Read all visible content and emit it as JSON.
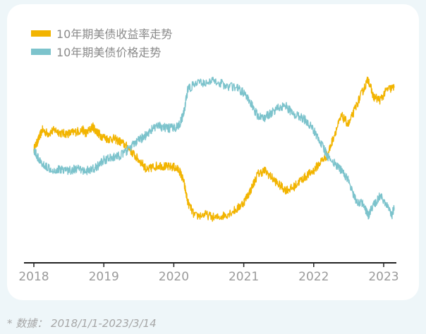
{
  "chart_data": {
    "type": "line",
    "title": "",
    "xlabel": "",
    "ylabel": "",
    "x_ticks": [
      "2018",
      "2019",
      "2020",
      "2021",
      "2022",
      "2023"
    ],
    "x_range": [
      2018.0,
      2023.2
    ],
    "y_axis_visible": false,
    "grid": false,
    "legend_position": "top-left",
    "series": [
      {
        "name": "10年期美债收益率走势",
        "color": "#f2b400",
        "points": [
          [
            2018.0,
            0.52
          ],
          [
            2018.06,
            0.57
          ],
          [
            2018.12,
            0.63
          ],
          [
            2018.2,
            0.61
          ],
          [
            2018.3,
            0.63
          ],
          [
            2018.4,
            0.61
          ],
          [
            2018.5,
            0.61
          ],
          [
            2018.6,
            0.62
          ],
          [
            2018.7,
            0.63
          ],
          [
            2018.75,
            0.61
          ],
          [
            2018.84,
            0.65
          ],
          [
            2018.9,
            0.62
          ],
          [
            2018.95,
            0.6
          ],
          [
            2019.05,
            0.58
          ],
          [
            2019.15,
            0.58
          ],
          [
            2019.25,
            0.56
          ],
          [
            2019.35,
            0.53
          ],
          [
            2019.45,
            0.48
          ],
          [
            2019.55,
            0.44
          ],
          [
            2019.62,
            0.4
          ],
          [
            2019.7,
            0.42
          ],
          [
            2019.8,
            0.43
          ],
          [
            2019.9,
            0.42
          ],
          [
            2020.0,
            0.42
          ],
          [
            2020.08,
            0.4
          ],
          [
            2020.14,
            0.34
          ],
          [
            2020.2,
            0.22
          ],
          [
            2020.3,
            0.14
          ],
          [
            2020.45,
            0.15
          ],
          [
            2020.6,
            0.13
          ],
          [
            2020.75,
            0.15
          ],
          [
            2020.9,
            0.18
          ],
          [
            2021.0,
            0.22
          ],
          [
            2021.1,
            0.29
          ],
          [
            2021.2,
            0.38
          ],
          [
            2021.3,
            0.4
          ],
          [
            2021.4,
            0.36
          ],
          [
            2021.5,
            0.32
          ],
          [
            2021.6,
            0.29
          ],
          [
            2021.7,
            0.3
          ],
          [
            2021.8,
            0.34
          ],
          [
            2021.9,
            0.37
          ],
          [
            2022.0,
            0.4
          ],
          [
            2022.1,
            0.45
          ],
          [
            2022.2,
            0.49
          ],
          [
            2022.3,
            0.61
          ],
          [
            2022.4,
            0.71
          ],
          [
            2022.5,
            0.66
          ],
          [
            2022.6,
            0.76
          ],
          [
            2022.7,
            0.85
          ],
          [
            2022.78,
            0.92
          ],
          [
            2022.85,
            0.82
          ],
          [
            2022.95,
            0.8
          ],
          [
            2023.05,
            0.86
          ],
          [
            2023.15,
            0.87
          ]
        ]
      },
      {
        "name": "10年期美债价格走势",
        "color": "#7cc3cc",
        "points": [
          [
            2018.0,
            0.52
          ],
          [
            2018.06,
            0.47
          ],
          [
            2018.12,
            0.43
          ],
          [
            2018.2,
            0.42
          ],
          [
            2018.3,
            0.4
          ],
          [
            2018.4,
            0.41
          ],
          [
            2018.5,
            0.4
          ],
          [
            2018.6,
            0.41
          ],
          [
            2018.7,
            0.4
          ],
          [
            2018.8,
            0.4
          ],
          [
            2018.9,
            0.42
          ],
          [
            2019.0,
            0.46
          ],
          [
            2019.1,
            0.47
          ],
          [
            2019.2,
            0.48
          ],
          [
            2019.3,
            0.5
          ],
          [
            2019.4,
            0.54
          ],
          [
            2019.5,
            0.57
          ],
          [
            2019.6,
            0.6
          ],
          [
            2019.7,
            0.64
          ],
          [
            2019.8,
            0.65
          ],
          [
            2019.9,
            0.64
          ],
          [
            2020.0,
            0.64
          ],
          [
            2020.08,
            0.66
          ],
          [
            2020.14,
            0.72
          ],
          [
            2020.2,
            0.86
          ],
          [
            2020.3,
            0.89
          ],
          [
            2020.45,
            0.9
          ],
          [
            2020.6,
            0.91
          ],
          [
            2020.75,
            0.88
          ],
          [
            2020.9,
            0.87
          ],
          [
            2021.0,
            0.84
          ],
          [
            2021.1,
            0.78
          ],
          [
            2021.2,
            0.71
          ],
          [
            2021.3,
            0.7
          ],
          [
            2021.4,
            0.73
          ],
          [
            2021.5,
            0.76
          ],
          [
            2021.6,
            0.77
          ],
          [
            2021.7,
            0.72
          ],
          [
            2021.8,
            0.71
          ],
          [
            2021.9,
            0.68
          ],
          [
            2022.0,
            0.63
          ],
          [
            2022.1,
            0.56
          ],
          [
            2022.2,
            0.48
          ],
          [
            2022.3,
            0.44
          ],
          [
            2022.4,
            0.4
          ],
          [
            2022.5,
            0.34
          ],
          [
            2022.6,
            0.23
          ],
          [
            2022.7,
            0.21
          ],
          [
            2022.78,
            0.14
          ],
          [
            2022.85,
            0.2
          ],
          [
            2022.95,
            0.26
          ],
          [
            2023.05,
            0.2
          ],
          [
            2023.12,
            0.15
          ],
          [
            2023.15,
            0.19
          ]
        ]
      }
    ]
  },
  "footer": {
    "source_note": "* 数據：  2018/1/1-2023/3/14"
  }
}
